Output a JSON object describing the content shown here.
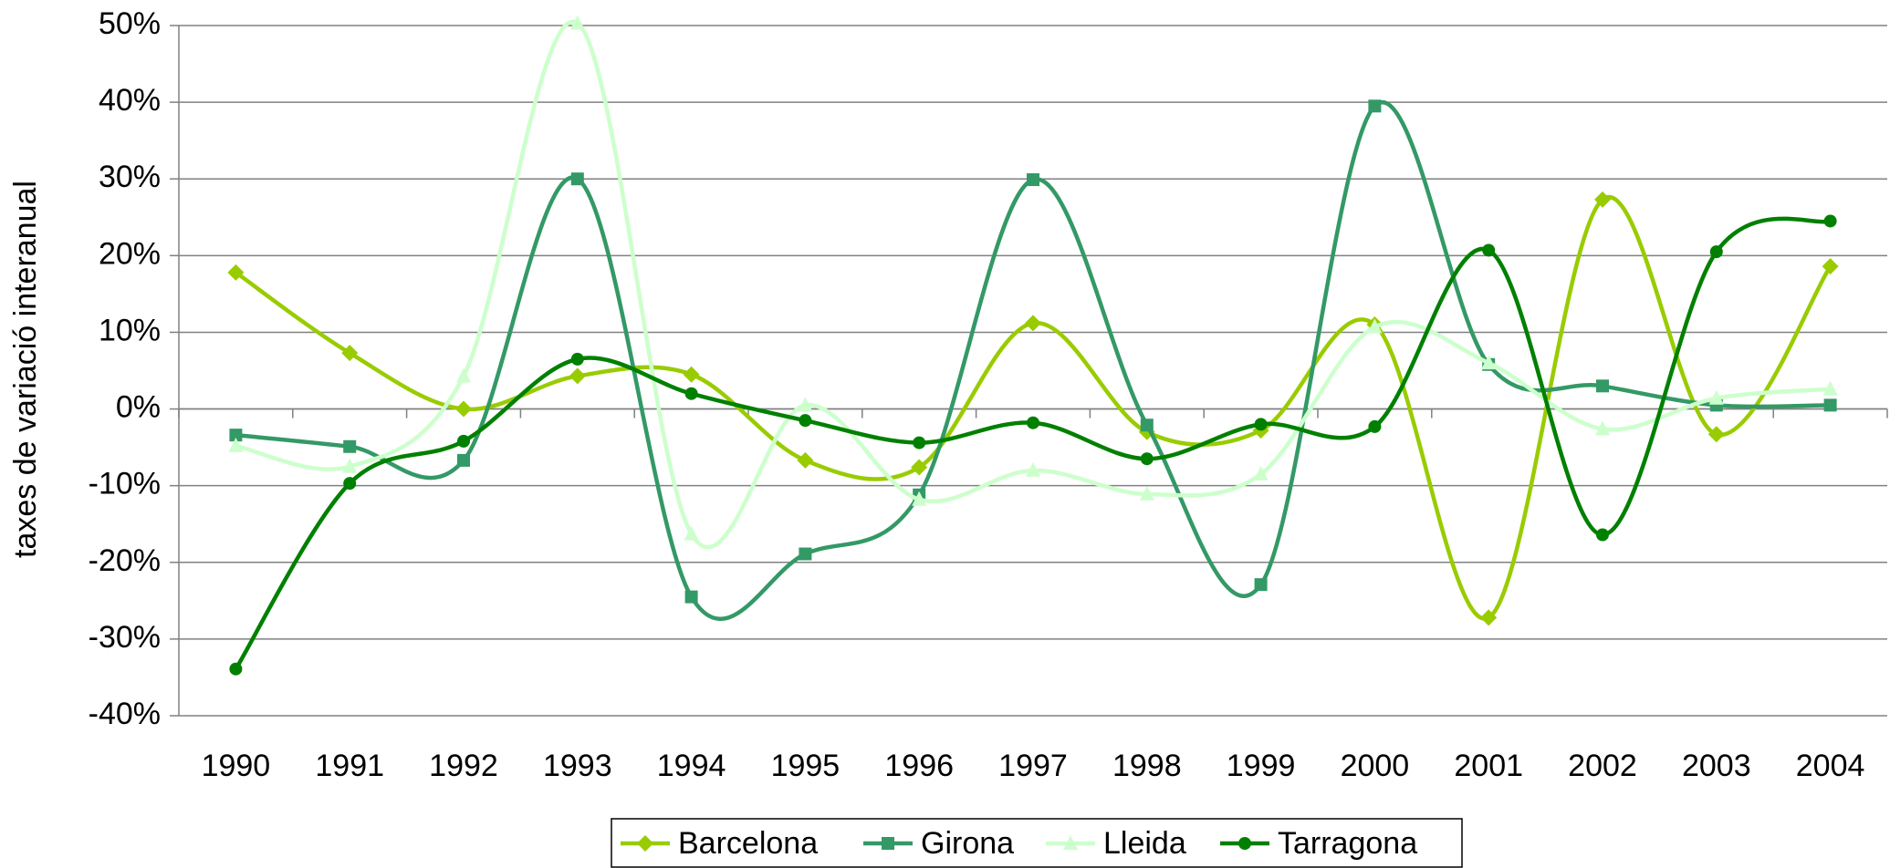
{
  "chart_data": {
    "type": "line",
    "y_axis_label": "taxes de variació interanual",
    "categories": [
      "1990",
      "1991",
      "1992",
      "1993",
      "1994",
      "1995",
      "1996",
      "1997",
      "1998",
      "1999",
      "2000",
      "2001",
      "2002",
      "2003",
      "2004"
    ],
    "series": [
      {
        "name": "Barcelona",
        "color": "#99cc00",
        "marker": "diamond",
        "values": [
          17.8,
          7.3,
          0,
          4.3,
          4.5,
          -6.7,
          -7.6,
          11.2,
          -3,
          -2.8,
          11,
          -27.2,
          27.3,
          -3.3,
          18.6
        ]
      },
      {
        "name": "Girona",
        "color": "#339966",
        "marker": "square",
        "values": [
          -3.4,
          -4.9,
          -6.7,
          30,
          -24.5,
          -18.9,
          -11.2,
          29.9,
          -2.1,
          -22.9,
          39.5,
          5.8,
          3,
          0.5,
          0.5
        ]
      },
      {
        "name": "Lleida",
        "color": "#ccffcc",
        "marker": "triangle",
        "values": [
          -4.8,
          -7.5,
          4.3,
          50.3,
          -16.3,
          0.5,
          -11.8,
          -8,
          -11.1,
          -8.5,
          10.7,
          6,
          -2.6,
          1.4,
          2.6
        ]
      },
      {
        "name": "Tarragona",
        "color": "#008000",
        "marker": "circle",
        "values": [
          -33.9,
          -9.7,
          -4.2,
          6.5,
          2,
          -1.5,
          -4.4,
          -1.8,
          -6.5,
          -2,
          -2.3,
          20.7,
          -16.4,
          20.5,
          24.5
        ]
      }
    ],
    "ylim": [
      -40,
      50
    ],
    "yticks": [
      {
        "value": -40,
        "label": "-40%"
      },
      {
        "value": -30,
        "label": "-30%"
      },
      {
        "value": -20,
        "label": "-20%"
      },
      {
        "value": -10,
        "label": "-10%"
      },
      {
        "value": 0,
        "label": "0%"
      },
      {
        "value": 10,
        "label": "10%"
      },
      {
        "value": 20,
        "label": "20%"
      },
      {
        "value": 30,
        "label": "30%"
      },
      {
        "value": 40,
        "label": "40%"
      },
      {
        "value": 50,
        "label": "50%"
      }
    ],
    "grid": true,
    "smooth": true,
    "legend": "bottom"
  }
}
